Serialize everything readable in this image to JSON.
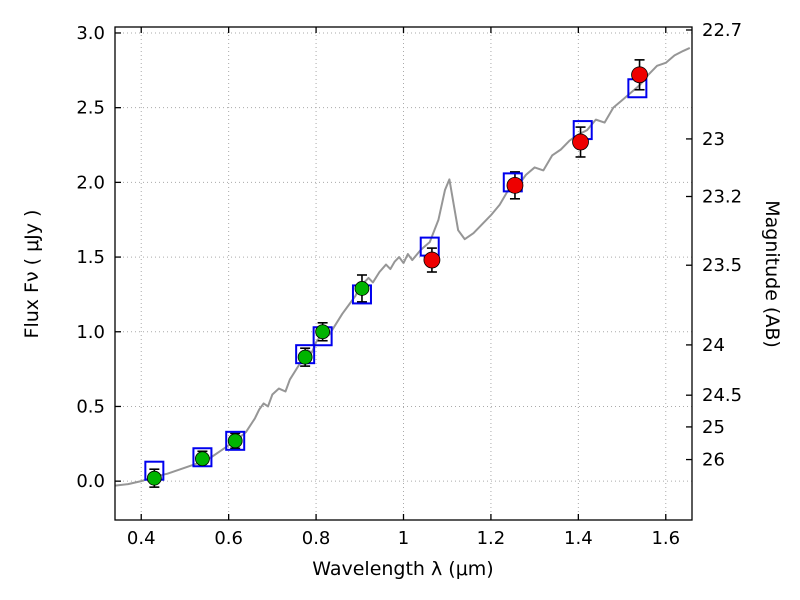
{
  "chart_data": {
    "type": "line",
    "title": "",
    "xlabel": "Wavelength  λ (μm)",
    "ylabel": "Flux  Fν  ( μJy )",
    "ylabel_right": "Magnitude (AB)",
    "xlim": [
      0.34,
      1.66
    ],
    "ylim": [
      -0.26,
      3.04
    ],
    "grid": "dotted",
    "legend": "none",
    "x_ticks": [
      0.4,
      0.6,
      0.8,
      1.0,
      1.2,
      1.4,
      1.6
    ],
    "x_tick_labels": [
      "0.4",
      "0.6",
      "0.8",
      "1",
      "1.2",
      "1.4",
      "1.6"
    ],
    "y_ticks": [
      0.0,
      0.5,
      1.0,
      1.5,
      2.0,
      2.5,
      3.0
    ],
    "y_tick_labels": [
      "0.0",
      "0.5",
      "1.0",
      "1.5",
      "2.0",
      "2.5",
      "3.0"
    ],
    "right_axis": {
      "tick_labels": [
        "22.7",
        "23",
        "23.2",
        "23.5",
        "24",
        "24.5",
        "25",
        "26"
      ],
      "ab_zeropoint_ujy": 23.9
    },
    "colors": {
      "spectrum": "#969696",
      "model_photometry": "#0000ee",
      "observed_optical": "#00b400",
      "observed_nir": "#ee0000",
      "errorbar": "#000000",
      "grid": "#aaaaaa"
    },
    "series": [
      {
        "name": "model-spectrum",
        "kind": "line",
        "x": [
          0.34,
          0.37,
          0.4,
          0.43,
          0.46,
          0.49,
          0.52,
          0.55,
          0.58,
          0.6,
          0.62,
          0.64,
          0.66,
          0.67,
          0.68,
          0.69,
          0.7,
          0.715,
          0.73,
          0.74,
          0.755,
          0.77,
          0.78,
          0.79,
          0.8,
          0.81,
          0.82,
          0.83,
          0.845,
          0.86,
          0.875,
          0.89,
          0.9,
          0.91,
          0.92,
          0.93,
          0.945,
          0.96,
          0.97,
          0.98,
          0.99,
          1.0,
          1.01,
          1.02,
          1.04,
          1.06,
          1.08,
          1.095,
          1.105,
          1.115,
          1.125,
          1.14,
          1.16,
          1.18,
          1.2,
          1.22,
          1.24,
          1.25,
          1.26,
          1.28,
          1.3,
          1.32,
          1.34,
          1.36,
          1.38,
          1.4,
          1.42,
          1.44,
          1.46,
          1.48,
          1.5,
          1.52,
          1.54,
          1.56,
          1.58,
          1.6,
          1.62,
          1.64,
          1.655
        ],
        "y": [
          -0.03,
          -0.02,
          0.0,
          0.03,
          0.05,
          0.08,
          0.11,
          0.14,
          0.2,
          0.24,
          0.28,
          0.33,
          0.42,
          0.48,
          0.52,
          0.5,
          0.58,
          0.62,
          0.6,
          0.68,
          0.75,
          0.82,
          0.88,
          0.86,
          0.93,
          0.97,
          1.0,
          0.98,
          1.05,
          1.12,
          1.18,
          1.24,
          1.3,
          1.33,
          1.36,
          1.33,
          1.4,
          1.45,
          1.42,
          1.47,
          1.5,
          1.46,
          1.52,
          1.48,
          1.55,
          1.6,
          1.75,
          1.95,
          2.02,
          1.85,
          1.68,
          1.62,
          1.66,
          1.72,
          1.78,
          1.85,
          1.95,
          2.0,
          1.97,
          2.05,
          2.1,
          2.08,
          2.18,
          2.22,
          2.28,
          2.32,
          2.35,
          2.42,
          2.4,
          2.5,
          2.55,
          2.6,
          2.65,
          2.72,
          2.78,
          2.8,
          2.85,
          2.88,
          2.9
        ]
      },
      {
        "name": "model-photometry",
        "kind": "scatter",
        "marker": "open-square",
        "x": [
          0.43,
          0.54,
          0.615,
          0.775,
          0.815,
          0.905,
          1.06,
          1.25,
          1.41,
          1.535
        ],
        "y": [
          0.07,
          0.16,
          0.27,
          0.85,
          0.97,
          1.25,
          1.57,
          2.0,
          2.35,
          2.63
        ]
      },
      {
        "name": "observed-optical",
        "kind": "scatter",
        "marker": "circle",
        "x": [
          0.43,
          0.54,
          0.615,
          0.775,
          0.815,
          0.905
        ],
        "y": [
          0.02,
          0.15,
          0.27,
          0.83,
          1.0,
          1.29
        ],
        "yerr": [
          0.06,
          0.05,
          0.05,
          0.06,
          0.06,
          0.09
        ]
      },
      {
        "name": "observed-nir",
        "kind": "scatter",
        "marker": "circle",
        "x": [
          1.065,
          1.255,
          1.405,
          1.54
        ],
        "y": [
          1.48,
          1.98,
          2.27,
          2.72
        ],
        "yerr": [
          0.08,
          0.09,
          0.1,
          0.1
        ]
      }
    ]
  }
}
